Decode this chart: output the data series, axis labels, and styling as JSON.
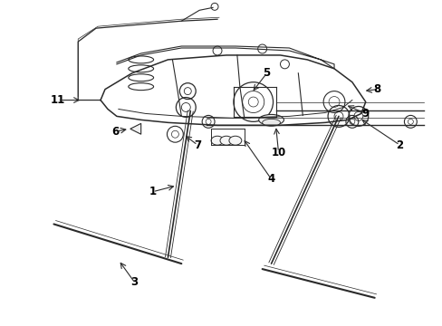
{
  "bg_color": "#ffffff",
  "line_color": "#2a2a2a",
  "label_color": "#000000",
  "fig_width": 4.89,
  "fig_height": 3.6,
  "dpi": 100,
  "lw": 1.0,
  "thin_lw": 0.5,
  "label_fontsize": 8.5
}
